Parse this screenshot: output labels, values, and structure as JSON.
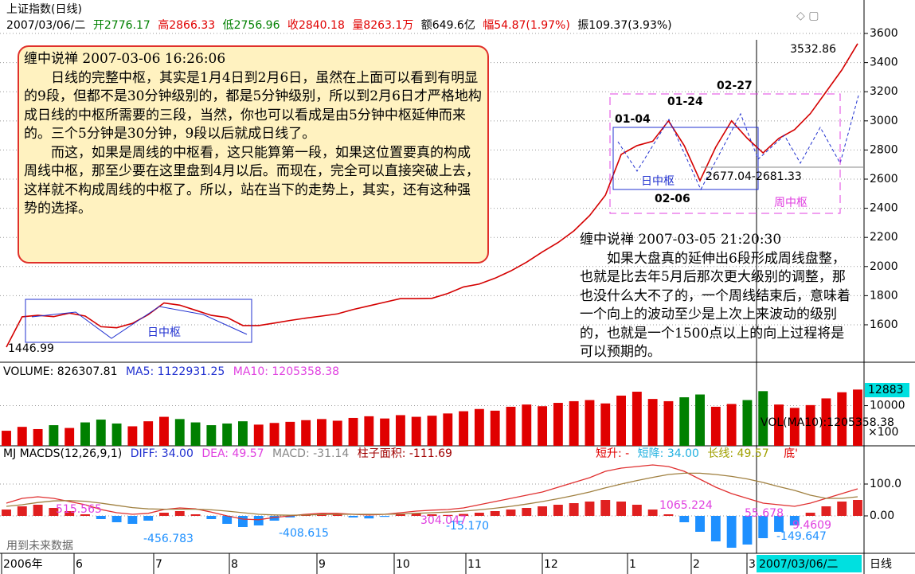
{
  "header": {
    "title": "上证指数(日线)",
    "quote": [
      "2007/03/06/二",
      "开2776.17",
      "高2866.33",
      "低2756.96",
      "收2840.18",
      "量8263.1万",
      "额649.6亿",
      "幅54.87(1.97%)",
      "振109.37(3.93%)"
    ]
  },
  "notes": [
    {
      "title": "缠中说禅 2007-03-06 16:26:06",
      "paragraphs": [
        "日线的完整中枢，其实是1月4日到2月6日，虽然在上面可以看到有明显的9段，但都不是30分钟级别的，都是5分钟级别，所以到2月6日才严格地构成日线的中枢所需要的三段，当然，你也可以看成是由5分钟中枢延伸而来的。三个5分钟是30分钟，9段以后就成日线了。",
        "而这，如果是周线的中枢看，这只能算第一段，如果这位置要真的构成周线中枢，那至少要在这里盘到4月以后。而现在，完全可以直接突破上去，这样就不构成周线的中枢了。所以，站在当下的走势上，其实，还有这种强势的选择。"
      ]
    },
    {
      "title": "缠中说禅 2007-03-05 21:20:30",
      "paragraphs": [
        "如果大盘真的延伸出6段形成周线盘整，也就是比去年5月后那次更大级别的调整，那也没什么大不了的，一个周线结束后，意味着一个向上的波动至少是上次上来波动的级别的，也就是一个1500点以上的向上过程将是可以预期的。"
      ]
    }
  ],
  "x_axis": {
    "labels": [
      "2006年",
      "6",
      "7",
      "8",
      "9",
      "10",
      "11",
      "12",
      "1",
      "2",
      "3",
      "2007/03/06/二",
      "日线"
    ]
  },
  "chart_data": [
    {
      "type": "line",
      "color": "#d40000",
      "categories": [
        null,
        null,
        null,
        null,
        null,
        null,
        null,
        null,
        null,
        null,
        null,
        null,
        null,
        null,
        null,
        null,
        null,
        null,
        null,
        null,
        null,
        null,
        null,
        null,
        null,
        null,
        null,
        null,
        null,
        null,
        null,
        null,
        null,
        null,
        null,
        null,
        null,
        null,
        null,
        null,
        null,
        null,
        null,
        null,
        null,
        null,
        null,
        null,
        null,
        null,
        null,
        null,
        null,
        null,
        null
      ],
      "values": [
        1447,
        1655,
        1665,
        1656,
        1680,
        1660,
        1587,
        1580,
        1610,
        1670,
        1750,
        1735,
        1700,
        1665,
        1650,
        1595,
        1595,
        1612,
        1630,
        1646,
        1660,
        1675,
        1705,
        1730,
        1755,
        1780,
        1780,
        1782,
        1815,
        1860,
        1880,
        1920,
        1970,
        2030,
        2100,
        2165,
        2245,
        2350,
        2490,
        2770,
        2830,
        2860,
        3000,
        2830,
        2590,
        2820,
        3000,
        2880,
        2780,
        2880,
        2940,
        3050,
        3200,
        3350,
        3530
      ],
      "ylim": [
        1343,
        3786
      ],
      "yticks": [
        1600,
        1800,
        2000,
        2200,
        2400,
        2600,
        2800,
        3000,
        3200,
        3400,
        3600
      ],
      "grid": true,
      "annotations": [
        "3532.86",
        "1446.99",
        "01-04",
        "01-24",
        "02-27",
        "02-06",
        "日中枢",
        "日中枢",
        "2677.04-2681.33",
        "周中枢"
      ]
    },
    {
      "type": "bar",
      "up_color": "#e00000",
      "down_color": "#008000",
      "header": [
        "VOLUME: 826307.81",
        "MA5: 1122931.25",
        "MA10: 1205358.38"
      ],
      "values": [
        5500,
        6200,
        5800,
        6500,
        6000,
        7000,
        7500,
        6800,
        6300,
        7200,
        8000,
        7600,
        7000,
        6500,
        6800,
        7200,
        6600,
        6900,
        7100,
        7400,
        7600,
        7300,
        7800,
        8100,
        7700,
        8300,
        8000,
        8200,
        8600,
        9000,
        9400,
        9100,
        9800,
        10200,
        9900,
        10500,
        10800,
        11000,
        10400,
        11800,
        12500,
        11200,
        10800,
        11500,
        12000,
        9800,
        10300,
        11000,
        12600,
        10200,
        9600,
        10100,
        11300,
        12400,
        12883
      ],
      "ylim": [
        2800,
        14500
      ],
      "yticks": [
        10000
      ],
      "grid": true,
      "annotations": [
        "12883",
        "VOL(MA10):1205358.38",
        "×100"
      ]
    },
    {
      "type": "macd",
      "up_color": "#e02020",
      "down_color": "#1e90ff",
      "header": [
        "MJ MACDS(12,26,9,1)",
        "DIFF: 34.00",
        "DEA: 49.57",
        "MACD: -31.14",
        "柱子面积: -111.69",
        "短升: -",
        "短降: 34.00",
        "长线: 49.57",
        "底'"
      ],
      "values": [
        20,
        30,
        35,
        25,
        15,
        5,
        -10,
        -20,
        -25,
        -15,
        10,
        15,
        5,
        -10,
        -25,
        -35,
        -30,
        -15,
        -5,
        5,
        8,
        5,
        -5,
        -8,
        -3,
        5,
        8,
        5,
        3,
        6,
        10,
        15,
        20,
        25,
        30,
        35,
        40,
        45,
        50,
        45,
        35,
        20,
        5,
        -20,
        -50,
        -80,
        -100,
        -90,
        -70,
        -50,
        -30,
        10,
        30,
        45,
        50
      ],
      "series": [
        {
          "color": "#e03030",
          "values": [
            40,
            55,
            60,
            55,
            45,
            35,
            20,
            10,
            5,
            8,
            20,
            25,
            22,
            12,
            0,
            -10,
            -12,
            -5,
            0,
            5,
            8,
            8,
            5,
            3,
            5,
            10,
            15,
            18,
            20,
            25,
            35,
            45,
            55,
            65,
            75,
            90,
            105,
            120,
            140,
            150,
            155,
            160,
            155,
            140,
            115,
            90,
            70,
            55,
            40,
            35,
            30,
            40,
            55,
            70,
            85
          ]
        },
        {
          "color": "#a08040",
          "values": [
            30,
            35,
            42,
            47,
            48,
            46,
            40,
            33,
            26,
            22,
            21,
            21,
            21,
            19,
            15,
            10,
            5,
            3,
            2,
            3,
            4,
            5,
            5,
            5,
            5,
            6,
            8,
            10,
            12,
            15,
            19,
            24,
            30,
            37,
            45,
            54,
            64,
            75,
            88,
            100,
            111,
            121,
            130,
            134,
            134,
            130,
            124,
            116,
            105,
            92,
            80,
            65,
            55,
            55,
            60
          ]
        }
      ],
      "ylim": [
        -112.5,
        215
      ],
      "yticks": [
        {
          "value": 100,
          "label": "100.0"
        },
        {
          "value": 0,
          "label": "0.00"
        }
      ],
      "grid": true,
      "annotations": [
        "515.565",
        "-456.783",
        "-408.615",
        "304.047",
        "-15.170",
        "1065.224",
        "55.678",
        "9.4609",
        "-149.647",
        "用到未来数据"
      ]
    }
  ]
}
